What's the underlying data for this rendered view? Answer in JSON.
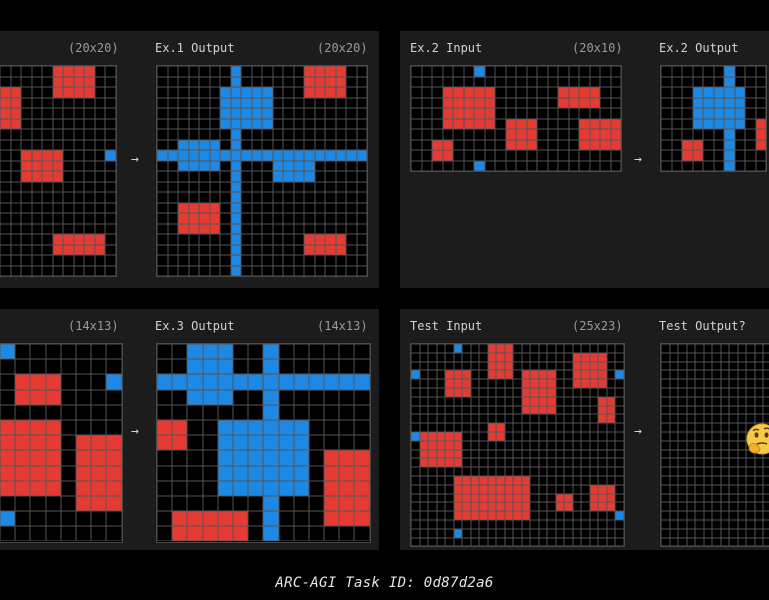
{
  "colors": {
    "background": "#000000",
    "panel": "#1c1c1c",
    "cell_empty": "#000000",
    "cell_red": "#e53b33",
    "cell_blue": "#1e88e5",
    "grid_line": "#555555",
    "label": "#d4d4d4",
    "dim_label": "#9a9a9a"
  },
  "arrow_glyph": "→",
  "examples": [
    {
      "input": {
        "title": "",
        "size": "(20x20)"
      },
      "output": {
        "title": "Ex.1 Output",
        "size": "(20x20)"
      }
    },
    {
      "input": {
        "title": "Ex.2 Input",
        "size": "(20x10)"
      },
      "output": {
        "title": "Ex.2 Output",
        "size": ""
      }
    },
    {
      "input": {
        "title": "",
        "size": "(14x13)"
      },
      "output": {
        "title": "Ex.3 Output",
        "size": "(14x13)"
      }
    },
    {
      "input": {
        "title": "Test Input",
        "size": "(25x23)"
      },
      "output": {
        "title": "Test Output?",
        "size": ""
      }
    }
  ],
  "thinking_emoji_icon": "thinking-face-icon",
  "caption": "ARC-AGI Task ID: 0d87d2a6"
}
